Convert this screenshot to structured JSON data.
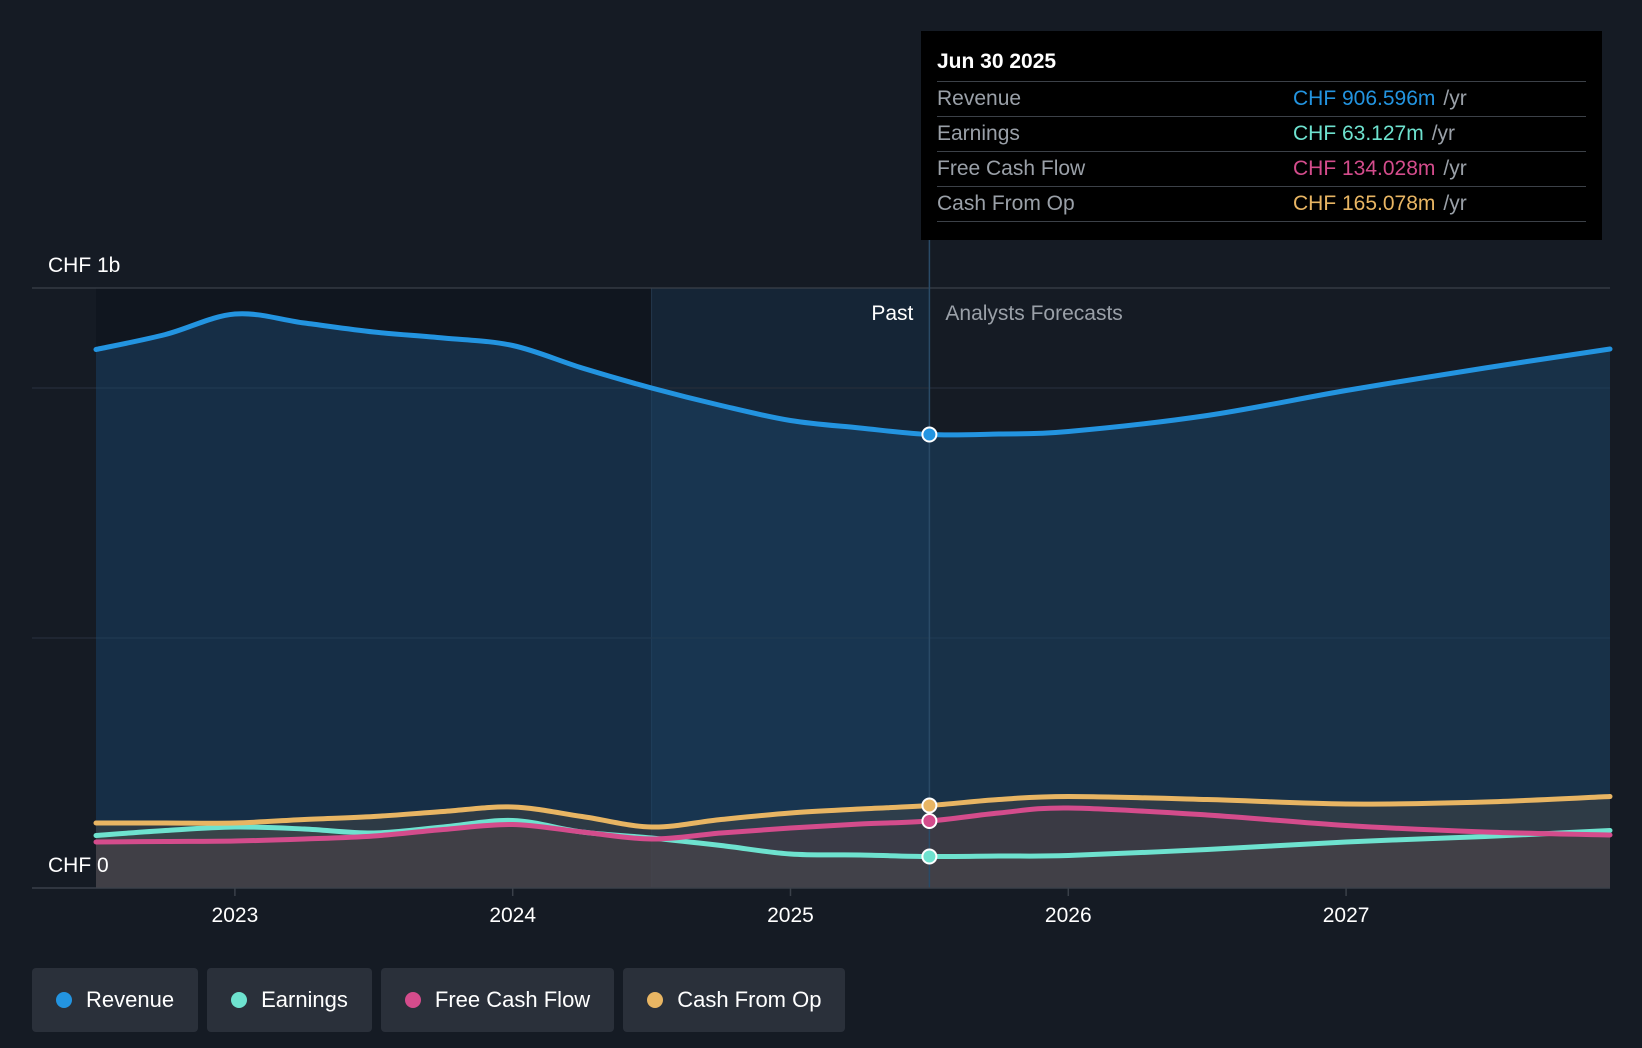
{
  "colors": {
    "background": "#151b24",
    "revenue": "#2394e0",
    "earnings": "#6ee2cf",
    "free_cash_flow": "#d44c8c",
    "cash_from_op": "#e8b563"
  },
  "tooltip": {
    "date": "Jun 30 2025",
    "rows": [
      {
        "label": "Revenue",
        "value": "CHF 906.596m",
        "unit": "/yr",
        "color": "#2394e0"
      },
      {
        "label": "Earnings",
        "value": "CHF 63.127m",
        "unit": "/yr",
        "color": "#6ee2cf"
      },
      {
        "label": "Free Cash Flow",
        "value": "CHF 134.028m",
        "unit": "/yr",
        "color": "#d44c8c"
      },
      {
        "label": "Cash From Op",
        "value": "CHF 165.078m",
        "unit": "/yr",
        "color": "#e8b563"
      }
    ]
  },
  "legend": [
    {
      "label": "Revenue",
      "color": "#2394e0"
    },
    {
      "label": "Earnings",
      "color": "#6ee2cf"
    },
    {
      "label": "Free Cash Flow",
      "color": "#d44c8c"
    },
    {
      "label": "Cash From Op",
      "color": "#e8b563"
    }
  ],
  "chart_data": {
    "type": "line",
    "units": "CHF",
    "y_top_label": "CHF 1b",
    "y_bottom_label": "CHF 0",
    "ylim": [
      0,
      1200
    ],
    "xlim": [
      2022.5,
      2027.95
    ],
    "x_ticks": [
      2023,
      2024,
      2025,
      2026,
      2027
    ],
    "x_tick_labels": [
      "2023",
      "2024",
      "2025",
      "2026",
      "2027"
    ],
    "past_label": "Past",
    "forecast_label": "Analysts Forecasts",
    "past_end": 2025.5,
    "highlight_start": 2024.5,
    "series": [
      {
        "name": "Revenue",
        "key": "revenue",
        "x": [
          2022.5,
          2022.75,
          2023.0,
          2023.25,
          2023.5,
          2023.75,
          2024.0,
          2024.25,
          2024.5,
          2024.75,
          2025.0,
          2025.25,
          2025.5,
          2025.75,
          2026.0,
          2026.5,
          2027.0,
          2027.5,
          2027.95
        ],
        "values": [
          1077,
          1107,
          1148,
          1130,
          1112,
          1100,
          1085,
          1040,
          1000,
          965,
          935,
          920,
          907,
          908,
          913,
          945,
          995,
          1040,
          1078
        ]
      },
      {
        "name": "Earnings",
        "key": "earnings",
        "x": [
          2022.5,
          2022.75,
          2023.0,
          2023.25,
          2023.5,
          2023.75,
          2024.0,
          2024.25,
          2024.5,
          2024.75,
          2025.0,
          2025.25,
          2025.5,
          2025.75,
          2026.0,
          2026.5,
          2027.0,
          2027.5,
          2027.95
        ],
        "values": [
          105,
          115,
          122,
          118,
          110,
          122,
          135,
          112,
          100,
          85,
          68,
          66,
          63,
          64,
          65,
          77,
          92,
          103,
          115
        ]
      },
      {
        "name": "Free Cash Flow",
        "key": "free_cash_flow",
        "x": [
          2022.5,
          2022.75,
          2023.0,
          2023.25,
          2023.5,
          2023.75,
          2024.0,
          2024.25,
          2024.5,
          2024.75,
          2025.0,
          2025.25,
          2025.5,
          2025.75,
          2026.0,
          2026.5,
          2027.0,
          2027.5,
          2027.95
        ],
        "values": [
          92,
          93,
          94,
          98,
          104,
          117,
          127,
          112,
          98,
          110,
          120,
          128,
          134,
          150,
          160,
          146,
          125,
          112,
          106
        ]
      },
      {
        "name": "Cash From Op",
        "key": "cash_from_op",
        "x": [
          2022.5,
          2022.75,
          2023.0,
          2023.25,
          2023.5,
          2023.75,
          2024.0,
          2024.25,
          2024.5,
          2024.75,
          2025.0,
          2025.25,
          2025.5,
          2025.75,
          2026.0,
          2026.5,
          2027.0,
          2027.5,
          2027.95
        ],
        "values": [
          130,
          130,
          130,
          137,
          143,
          153,
          162,
          143,
          122,
          137,
          150,
          158,
          165,
          177,
          183,
          177,
          168,
          172,
          183
        ]
      }
    ]
  }
}
